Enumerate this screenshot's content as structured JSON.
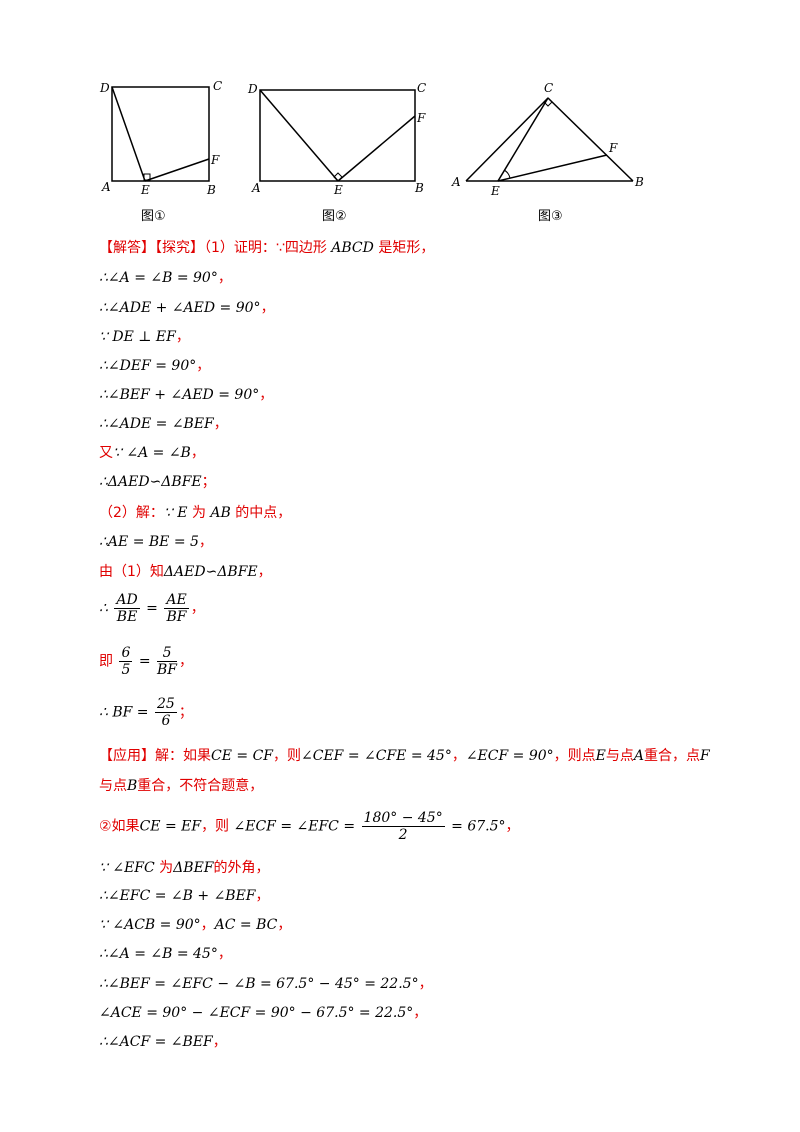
{
  "figures": {
    "fig1": {
      "caption": "图①",
      "labels": {
        "D": "D",
        "C": "C",
        "A": "A",
        "E": "E",
        "B": "B",
        "F": "F"
      }
    },
    "fig2": {
      "caption": "图②",
      "labels": {
        "D": "D",
        "C": "C",
        "A": "A",
        "E": "E",
        "B": "B",
        "F": "F"
      }
    },
    "fig3": {
      "caption": "图③",
      "labels": {
        "C": "C",
        "A": "A",
        "E": "E",
        "F": "F",
        "B": "B"
      }
    }
  },
  "lines": {
    "l1": {
      "a": "【解答】【探究】（1）证明：∵四边形 ",
      "b": "ABCD",
      "c": " 是矩形，"
    },
    "l2": "∴∠A = ∠B = 90°",
    "l3": "∴∠ADE + ∠AED = 90°",
    "l4": "∵ DE ⊥ EF",
    "l5": "∴∠DEF = 90°",
    "l6": "∴∠BEF + ∠AED = 90°",
    "l7": "∴∠ADE = ∠BEF",
    "l8": {
      "a": "又",
      "b": "∵ ∠A = ∠B"
    },
    "l9": "∴ΔAED∽ΔBFE",
    "l10": {
      "a": "（2）解：",
      "b": "∵ E",
      "c": " 为 ",
      "d": "AB",
      "e": " 的中点，"
    },
    "l11": "∴AE = BE = 5",
    "l12": {
      "a": "由（1）知",
      "b": "ΔAED∽ΔBFE"
    },
    "l13": {
      "pre": "∴",
      "n1": "AD",
      "d1": "BE",
      "eq": "=",
      "n2": "AE",
      "d2": "BF"
    },
    "l14": {
      "pre": "即",
      "n1": "6",
      "d1": "5",
      "eq": "=",
      "n2": "5",
      "d2": "BF"
    },
    "l15": {
      "pre": "∴ BF =",
      "n": "25",
      "d": "6"
    },
    "l16": {
      "a": "【应用】解：如果",
      "b": "CE = CF",
      "c": "，则",
      "d": "∠CEF = ∠CFE = 45°",
      "e": "，",
      "f": "∠ECF = 90°",
      "g": "，则点",
      "h": "E",
      "i": "与点",
      "j": "A",
      "k": "重合，点",
      "l": "F"
    },
    "l17": {
      "a": "与点",
      "b": "B",
      "c": "重合，不符合题意，"
    },
    "l18": {
      "a": "②如果",
      "b": "CE = EF",
      "c": "，则",
      "d": "∠ECF = ∠EFC =",
      "n": "180° − 45°",
      "den": "2",
      "e": "= 67.5°"
    },
    "l19": {
      "a": "∵ ∠EFC",
      "b": " 为",
      "c": "ΔBEF",
      "d": "的外角，"
    },
    "l20": "∴∠EFC = ∠B + ∠BEF",
    "l21": {
      "a": "∵ ∠ACB = 90°",
      "b": "，",
      "c": "AC = BC"
    },
    "l22": "∴∠A = ∠B = 45°",
    "l23": "∴∠BEF = ∠EFC − ∠B = 67.5° − 45° = 22.5°",
    "l24": "∠ACE = 90° − ∠ECF = 90° − 67.5° = 22.5°",
    "l25": "∴∠ACF = ∠BEF",
    "punct": {
      "comma": "，",
      "semi": "；"
    }
  }
}
